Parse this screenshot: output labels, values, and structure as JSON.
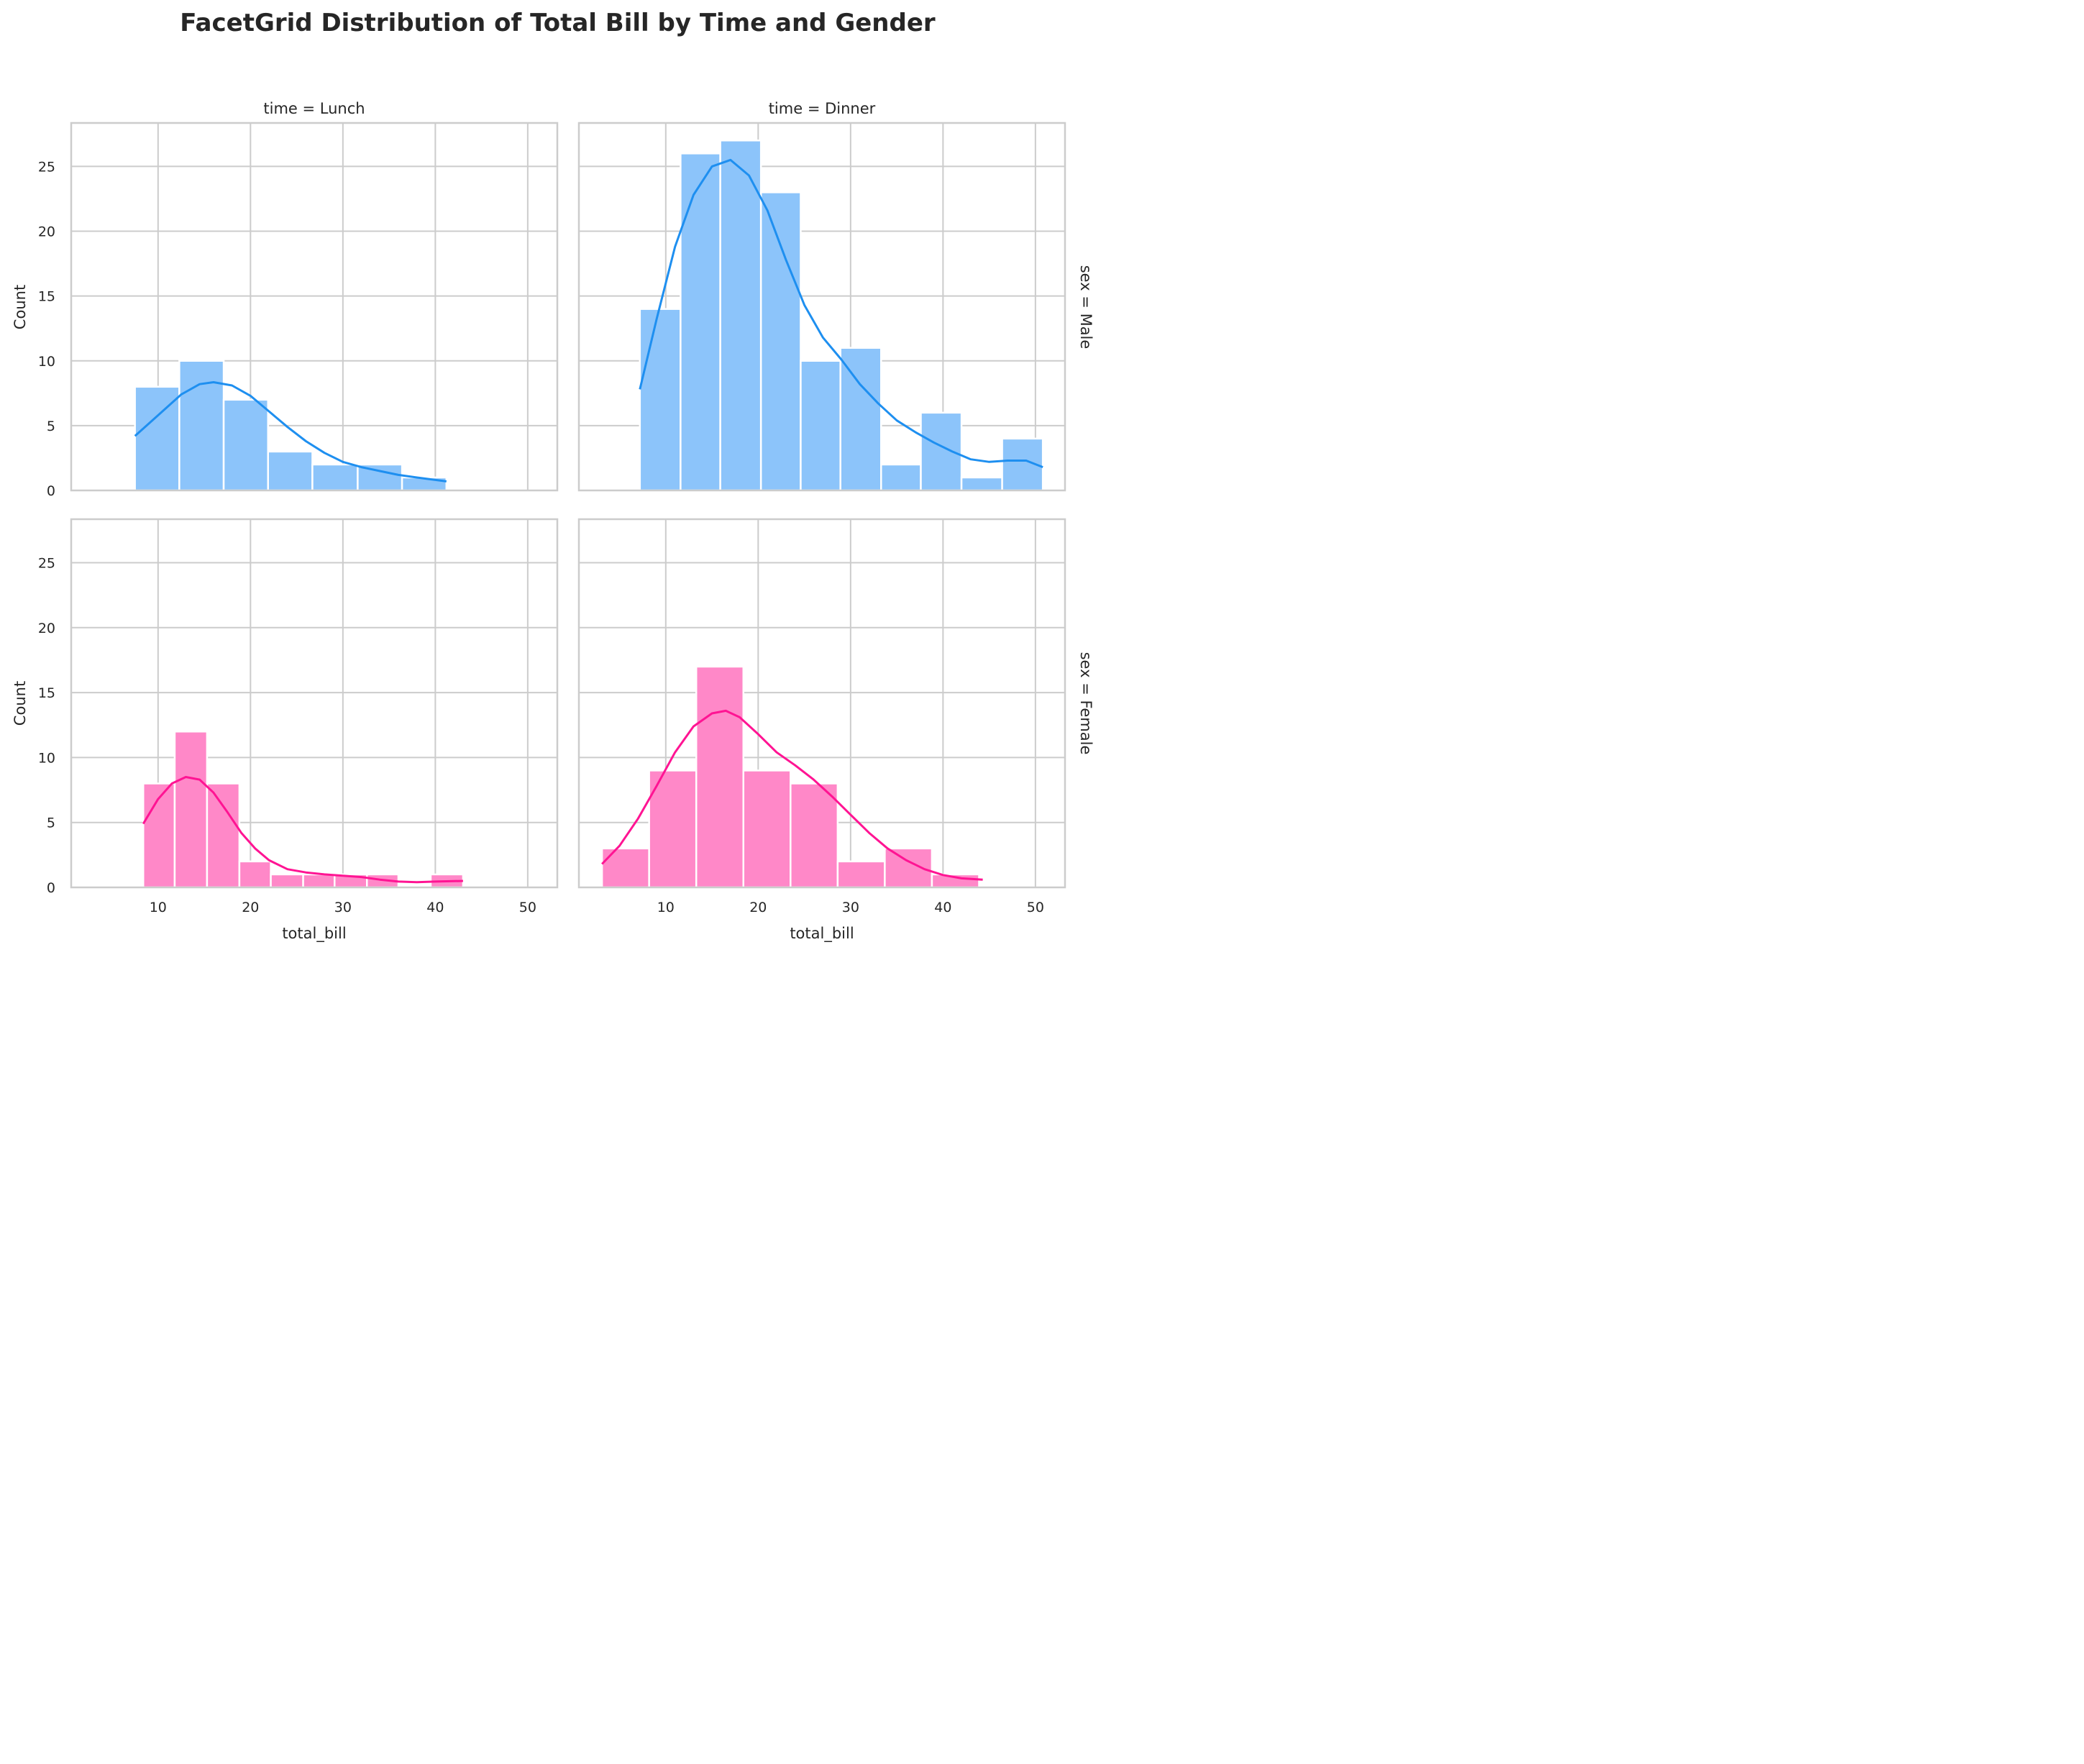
{
  "chart_data": {
    "type": "bar",
    "title": "FacetGrid Distribution of Total Bill by Time and Gender",
    "xlabel": "total_bill",
    "ylabel": "Count",
    "xlim": [
      0.6,
      53.2
    ],
    "ylim": [
      0,
      28.35
    ],
    "xticks": [
      10,
      20,
      30,
      40,
      50
    ],
    "yticks": [
      0,
      5,
      10,
      15,
      20,
      25
    ],
    "grid": true,
    "kde": true,
    "columns": [
      "time = Lunch",
      "time = Dinner"
    ],
    "rows": [
      "sex = Male",
      "sex = Female"
    ],
    "colors": {
      "Male": "#1e8ff0",
      "Female": "#ff1493",
      "Male_bar": "#8cc4fa",
      "Female_bar": "#ff88c8"
    },
    "panels": [
      {
        "time": "Lunch",
        "sex": "Male",
        "bins": [
          [
            7.5,
            12.3,
            8
          ],
          [
            12.3,
            17.1,
            10
          ],
          [
            17.1,
            21.9,
            7
          ],
          [
            21.9,
            26.7,
            3
          ],
          [
            26.7,
            31.6,
            2
          ],
          [
            31.6,
            36.4,
            2
          ],
          [
            36.4,
            41.2,
            1
          ]
        ],
        "kde": [
          [
            7.5,
            4.2
          ],
          [
            10,
            5.8
          ],
          [
            12.5,
            7.4
          ],
          [
            14.5,
            8.2
          ],
          [
            16,
            8.35
          ],
          [
            18,
            8.1
          ],
          [
            20,
            7.3
          ],
          [
            22,
            6.1
          ],
          [
            24,
            4.9
          ],
          [
            26,
            3.8
          ],
          [
            28,
            2.9
          ],
          [
            30,
            2.2
          ],
          [
            32,
            1.8
          ],
          [
            34,
            1.5
          ],
          [
            36,
            1.2
          ],
          [
            38,
            1.0
          ],
          [
            41.2,
            0.7
          ]
        ]
      },
      {
        "time": "Dinner",
        "sex": "Male",
        "bins": [
          [
            7.2,
            11.6,
            14
          ],
          [
            11.6,
            15.9,
            26
          ],
          [
            15.9,
            20.3,
            27
          ],
          [
            20.3,
            24.6,
            23
          ],
          [
            24.6,
            28.9,
            10
          ],
          [
            28.9,
            33.3,
            11
          ],
          [
            33.3,
            37.6,
            2
          ],
          [
            37.6,
            42.0,
            6
          ],
          [
            42.0,
            46.4,
            1
          ],
          [
            46.4,
            50.8,
            4
          ]
        ],
        "kde": [
          [
            7.2,
            7.8
          ],
          [
            9,
            13.2
          ],
          [
            11,
            18.8
          ],
          [
            13,
            22.8
          ],
          [
            15,
            25.0
          ],
          [
            17,
            25.5
          ],
          [
            19,
            24.3
          ],
          [
            21,
            21.6
          ],
          [
            23,
            17.8
          ],
          [
            25,
            14.3
          ],
          [
            27,
            11.8
          ],
          [
            29,
            10.1
          ],
          [
            31,
            8.2
          ],
          [
            33,
            6.7
          ],
          [
            35,
            5.4
          ],
          [
            37,
            4.5
          ],
          [
            39,
            3.7
          ],
          [
            41,
            3.0
          ],
          [
            43,
            2.4
          ],
          [
            45,
            2.2
          ],
          [
            47,
            2.3
          ],
          [
            49,
            2.3
          ],
          [
            50.8,
            1.8
          ]
        ]
      },
      {
        "time": "Lunch",
        "sex": "Female",
        "bins": [
          [
            8.4,
            11.8,
            8
          ],
          [
            11.8,
            15.3,
            12
          ],
          [
            15.3,
            18.8,
            8
          ],
          [
            18.8,
            22.2,
            2
          ],
          [
            22.2,
            25.7,
            1
          ],
          [
            25.7,
            29.1,
            1
          ],
          [
            29.1,
            32.6,
            1
          ],
          [
            32.6,
            36.0,
            1
          ],
          [
            36.0,
            39.5,
            0
          ],
          [
            39.5,
            43.0,
            1
          ]
        ],
        "kde": [
          [
            8.4,
            4.9
          ],
          [
            10,
            6.8
          ],
          [
            11.5,
            8.0
          ],
          [
            13,
            8.5
          ],
          [
            14.5,
            8.3
          ],
          [
            16,
            7.3
          ],
          [
            17.5,
            5.8
          ],
          [
            19,
            4.2
          ],
          [
            20.5,
            3.0
          ],
          [
            22,
            2.1
          ],
          [
            24,
            1.4
          ],
          [
            26,
            1.15
          ],
          [
            28,
            1.0
          ],
          [
            30,
            0.9
          ],
          [
            32,
            0.8
          ],
          [
            34,
            0.6
          ],
          [
            36,
            0.45
          ],
          [
            38,
            0.4
          ],
          [
            40,
            0.45
          ],
          [
            43.0,
            0.5
          ]
        ]
      },
      {
        "time": "Dinner",
        "sex": "Female",
        "bins": [
          [
            3.1,
            8.2,
            3
          ],
          [
            8.2,
            13.3,
            9
          ],
          [
            13.3,
            18.4,
            17
          ],
          [
            18.4,
            23.5,
            9
          ],
          [
            23.5,
            28.6,
            8
          ],
          [
            28.6,
            33.7,
            2
          ],
          [
            33.7,
            38.8,
            3
          ],
          [
            38.8,
            43.9,
            1
          ]
        ],
        "kde": [
          [
            3.1,
            1.8
          ],
          [
            5,
            3.2
          ],
          [
            7,
            5.3
          ],
          [
            9,
            7.8
          ],
          [
            11,
            10.4
          ],
          [
            13,
            12.4
          ],
          [
            15,
            13.4
          ],
          [
            16.5,
            13.6
          ],
          [
            18,
            13.1
          ],
          [
            20,
            11.8
          ],
          [
            22,
            10.4
          ],
          [
            24,
            9.4
          ],
          [
            26,
            8.3
          ],
          [
            28,
            7.0
          ],
          [
            30,
            5.6
          ],
          [
            32,
            4.2
          ],
          [
            34,
            3.0
          ],
          [
            36,
            2.1
          ],
          [
            38,
            1.4
          ],
          [
            40,
            0.95
          ],
          [
            42,
            0.7
          ],
          [
            44.3,
            0.6
          ]
        ]
      }
    ]
  }
}
